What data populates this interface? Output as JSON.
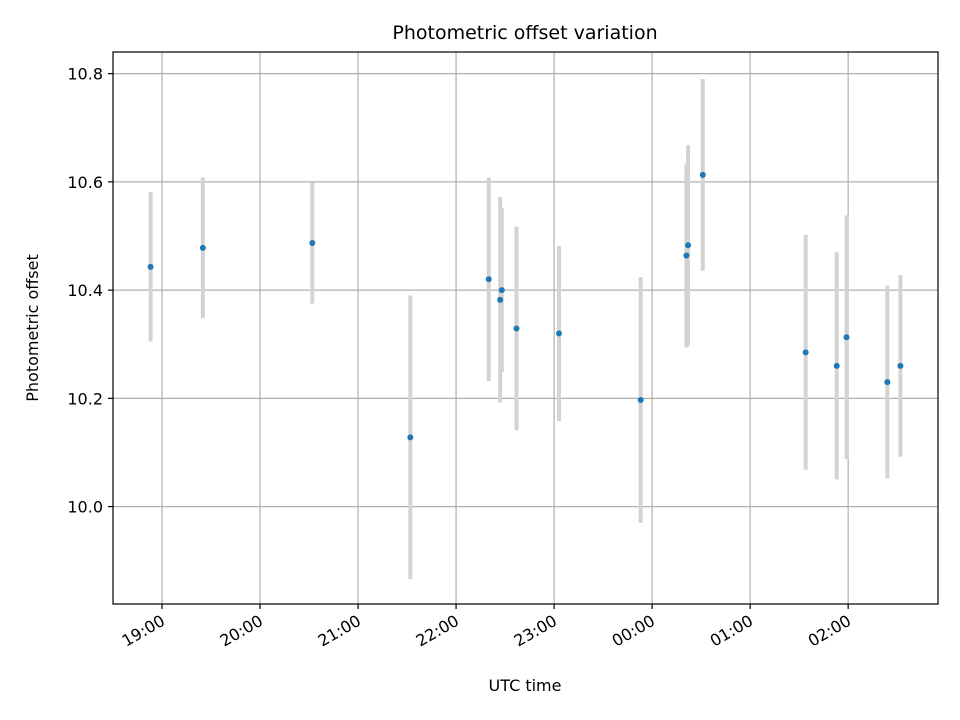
{
  "chart_data": {
    "type": "scatter",
    "title": "Photometric offset variation",
    "xlabel": "UTC time",
    "ylabel": "Photometric offset",
    "x_ticks": [
      "19:00",
      "20:00",
      "21:00",
      "22:00",
      "23:00",
      "00:00",
      "01:00",
      "02:00"
    ],
    "y_ticks": [
      "10.0",
      "10.2",
      "10.4",
      "10.6",
      "10.8"
    ],
    "xlim": [
      "18:30",
      "02:55"
    ],
    "ylim": [
      9.82,
      10.84
    ],
    "grid": true,
    "marker_color": "#1f77b4",
    "errorbar_color": "#d3d3d3",
    "points": [
      {
        "t": "18:53",
        "y": 10.443,
        "err": 0.138
      },
      {
        "t": "19:25",
        "y": 10.478,
        "err": 0.13
      },
      {
        "t": "20:32",
        "y": 10.487,
        "err": 0.112
      },
      {
        "t": "21:32",
        "y": 10.128,
        "err": 0.262
      },
      {
        "t": "22:20",
        "y": 10.42,
        "err": 0.188
      },
      {
        "t": "22:27",
        "y": 10.382,
        "err": 0.19
      },
      {
        "t": "22:28",
        "y": 10.4,
        "err": 0.152
      },
      {
        "t": "22:37",
        "y": 10.329,
        "err": 0.188
      },
      {
        "t": "23:03",
        "y": 10.32,
        "err": 0.162
      },
      {
        "t": "23:53",
        "y": 10.197,
        "err": 0.227
      },
      {
        "t": "00:21",
        "y": 10.464,
        "err": 0.17
      },
      {
        "t": "00:22",
        "y": 10.483,
        "err": 0.185
      },
      {
        "t": "00:31",
        "y": 10.613,
        "err": 0.177
      },
      {
        "t": "01:34",
        "y": 10.285,
        "err": 0.217
      },
      {
        "t": "01:53",
        "y": 10.26,
        "err": 0.21
      },
      {
        "t": "01:59",
        "y": 10.313,
        "err": 0.225
      },
      {
        "t": "02:24",
        "y": 10.23,
        "err": 0.178
      },
      {
        "t": "02:32",
        "y": 10.26,
        "err": 0.168
      }
    ]
  }
}
